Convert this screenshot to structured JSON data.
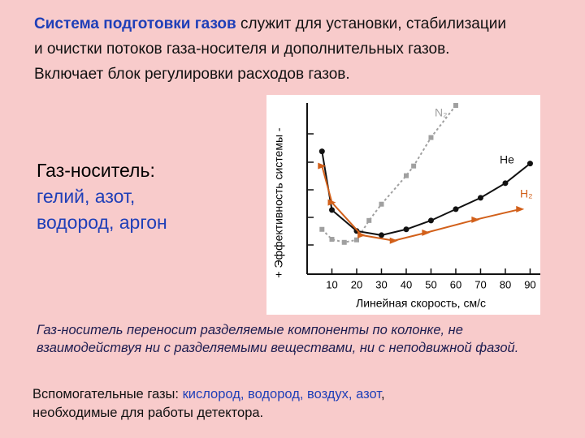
{
  "header": {
    "bold": "Система подготовки газов",
    "text": " служит для установки, стабилизации и очистки потоков газа-носителя и дополнительных газов. Включает блок регулировки расходов газов."
  },
  "carrier": {
    "title": "Газ-носитель:",
    "lines": [
      "гелий, азот,",
      "водород, аргон"
    ]
  },
  "note": "Газ-носитель переносит разделяемые компоненты по колонке, не взаимодействуя ни с разделяемыми веществами, ни с неподвижной фазой.",
  "aux": {
    "label": "Вспомогательные газы: ",
    "gases": "кислород, водород, воздух, азот",
    "rest": ", необходимые для работы детектора."
  },
  "chart_data": {
    "type": "line",
    "x_label": "Линейная скорость, см/с",
    "y_label": "+ Эффективность системы -",
    "xlim": [
      0,
      93
    ],
    "ylim": [
      0,
      6.1
    ],
    "xticks": [
      10,
      20,
      30,
      40,
      50,
      60,
      70,
      80,
      90
    ],
    "series": [
      {
        "name": "N₂",
        "color": "#a0a0a0",
        "x": [
          6,
          10,
          15,
          20,
          25,
          30,
          40,
          43,
          50,
          60
        ],
        "values": [
          1.62,
          1.26,
          1.15,
          1.24,
          1.94,
          2.53,
          3.56,
          3.91,
          4.94,
          6.1
        ]
      },
      {
        "name": "He",
        "color": "#111111",
        "x": [
          6,
          10,
          20,
          30,
          40,
          50,
          60,
          70,
          80,
          90
        ],
        "values": [
          4.44,
          2.32,
          1.56,
          1.41,
          1.62,
          1.94,
          2.35,
          2.76,
          3.29,
          4.0
        ]
      },
      {
        "name": "H₂",
        "color": "#d2601a",
        "x": [
          6,
          10,
          22,
          35,
          48,
          68,
          86
        ],
        "values": [
          3.91,
          2.59,
          1.41,
          1.21,
          1.5,
          1.97,
          2.35
        ]
      }
    ]
  }
}
